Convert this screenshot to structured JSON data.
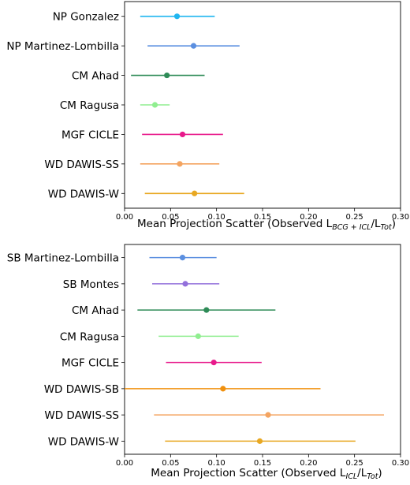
{
  "chart_data": [
    {
      "type": "scatter",
      "subtype": "point-with-error-bars",
      "xlabel": "Mean Projection Scatter (Observed L_{BCG+ICL}/L_{Tot})",
      "xlabel_parts": [
        {
          "text": "Mean Projection Scatter (Observed L"
        },
        {
          "text": "BCG + ICL",
          "sub": true
        },
        {
          "text": "/L"
        },
        {
          "text": "Tot",
          "sub": true
        },
        {
          "text": ")"
        }
      ],
      "xlim": [
        0.0,
        0.3
      ],
      "xticks": [
        "0.00",
        "0.05",
        "0.10",
        "0.15",
        "0.20",
        "0.25",
        "0.30"
      ],
      "grid": false,
      "series": [
        {
          "name": "NP Gonzalez",
          "value": 0.057,
          "low": 0.017,
          "high": 0.098,
          "color": "#1fb6f0"
        },
        {
          "name": "NP Martinez-Lombilla",
          "value": 0.075,
          "low": 0.025,
          "high": 0.125,
          "color": "#5b8fe0"
        },
        {
          "name": "CM Ahad",
          "value": 0.046,
          "low": 0.007,
          "high": 0.087,
          "color": "#2e8b57"
        },
        {
          "name": "CM Ragusa",
          "value": 0.033,
          "low": 0.017,
          "high": 0.049,
          "color": "#90ee90"
        },
        {
          "name": "MGF CICLE",
          "value": 0.063,
          "low": 0.019,
          "high": 0.107,
          "color": "#e8198b"
        },
        {
          "name": "WD DAWIS-SS",
          "value": 0.06,
          "low": 0.017,
          "high": 0.103,
          "color": "#f4a460"
        },
        {
          "name": "WD DAWIS-W",
          "value": 0.076,
          "low": 0.022,
          "high": 0.13,
          "color": "#e8a822"
        }
      ]
    },
    {
      "type": "scatter",
      "subtype": "point-with-error-bars",
      "xlabel": "Mean Projection Scatter (Observed L_{ICL}/L_{Tot})",
      "xlabel_parts": [
        {
          "text": "Mean Projection Scatter (Observed L"
        },
        {
          "text": "ICL",
          "sub": true
        },
        {
          "text": "/L"
        },
        {
          "text": "Tot",
          "sub": true
        },
        {
          "text": ")"
        }
      ],
      "xlim": [
        0.0,
        0.3
      ],
      "xticks": [
        "0.00",
        "0.05",
        "0.10",
        "0.15",
        "0.20",
        "0.25",
        "0.30"
      ],
      "grid": false,
      "series": [
        {
          "name": "SB Martinez-Lombilla",
          "value": 0.063,
          "low": 0.027,
          "high": 0.1,
          "color": "#5b8fe0"
        },
        {
          "name": "SB Montes",
          "value": 0.066,
          "low": 0.03,
          "high": 0.103,
          "color": "#9370db"
        },
        {
          "name": "CM Ahad",
          "value": 0.089,
          "low": 0.014,
          "high": 0.164,
          "color": "#2e8b57"
        },
        {
          "name": "CM Ragusa",
          "value": 0.08,
          "low": 0.037,
          "high": 0.124,
          "color": "#90ee90"
        },
        {
          "name": "MGF CICLE",
          "value": 0.097,
          "low": 0.045,
          "high": 0.149,
          "color": "#e8198b"
        },
        {
          "name": "WD DAWIS-SB",
          "value": 0.107,
          "low": 0.0,
          "high": 0.213,
          "color": "#f0900e"
        },
        {
          "name": "WD DAWIS-SS",
          "value": 0.156,
          "low": 0.032,
          "high": 0.282,
          "color": "#f4a460"
        },
        {
          "name": "WD DAWIS-W",
          "value": 0.147,
          "low": 0.044,
          "high": 0.251,
          "color": "#e8a822"
        }
      ]
    }
  ]
}
